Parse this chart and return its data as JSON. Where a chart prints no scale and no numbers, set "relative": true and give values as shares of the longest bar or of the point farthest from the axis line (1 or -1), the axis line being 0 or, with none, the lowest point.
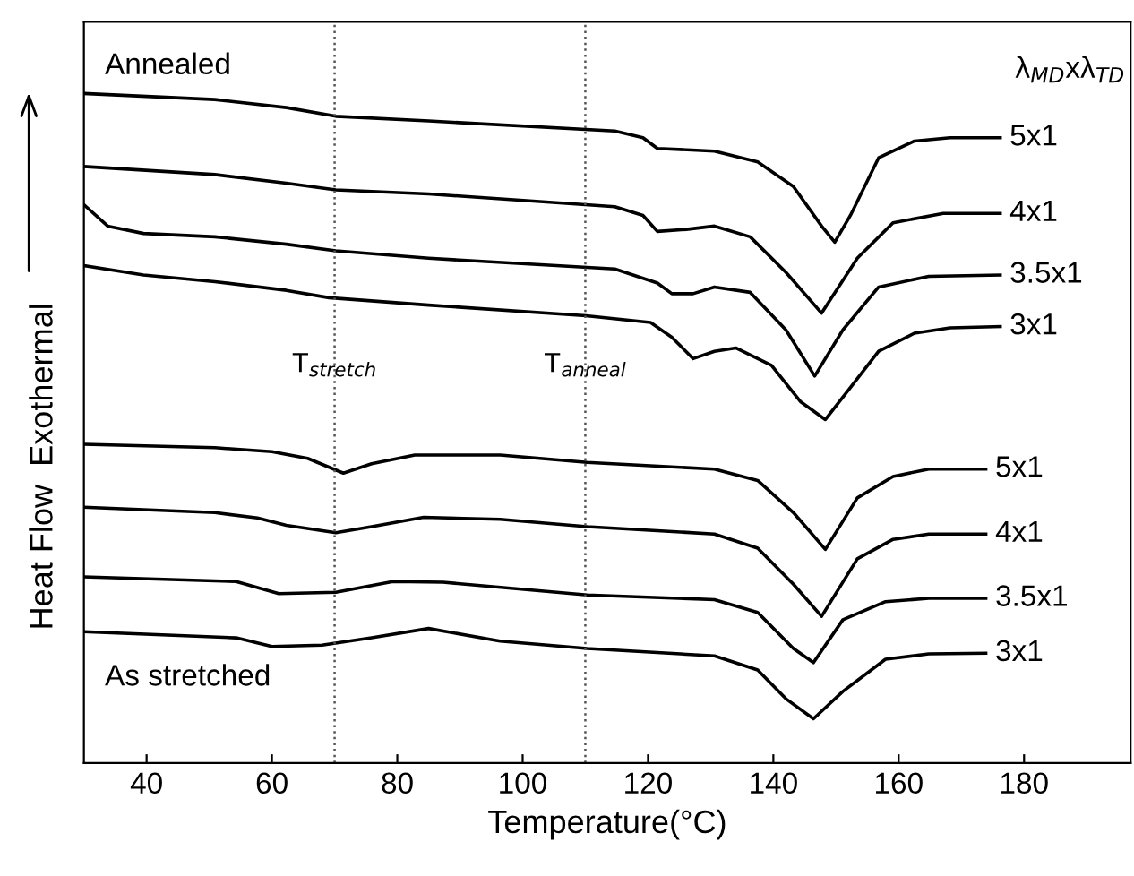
{
  "chart_data": {
    "type": "line",
    "relative": true,
    "xlabel": "Temperature(°C)",
    "ylabel": "Heat Flow  Exothermal",
    "xlim": [
      30,
      197
    ],
    "xticks": [
      40,
      60,
      80,
      100,
      120,
      140,
      160,
      180
    ],
    "tick_labels": "x",
    "grid": false,
    "legend": false,
    "marker": "none",
    "line_style": "solid",
    "annotations": [
      "Annealed",
      "As stretched",
      "λ$_{MD}$xλ$_{TD}$"
    ],
    "ref_lines": [
      {
        "axis": "x",
        "value": 70,
        "label": "T$_{stretch}$",
        "color": "#555555",
        "line_style": "dotted"
      },
      {
        "axis": "x",
        "value": 110,
        "label": "T$_{anneal}$",
        "color": "#555555",
        "line_style": "dotted"
      }
    ],
    "series": [
      {
        "name": "5x1",
        "color": "#000000",
        "x": [
          30,
          50.9,
          62.3,
          70.2,
          85.0,
          114.7,
          119.2,
          121.5,
          130.6,
          137.5,
          143.2,
          147.7,
          149.8,
          152.3,
          156.8,
          162.5,
          168.2,
          176.2
        ],
        "values": [
          1.0,
          0.991,
          0.979,
          0.966,
          0.959,
          0.944,
          0.934,
          0.918,
          0.914,
          0.898,
          0.861,
          0.802,
          0.778,
          0.818,
          0.904,
          0.929,
          0.934,
          0.934
        ]
      },
      {
        "name": "4x1",
        "color": "#000000",
        "x": [
          30,
          50.9,
          62.3,
          70.2,
          85.0,
          114.7,
          119.2,
          121.5,
          126.1,
          130.6,
          136.3,
          142.0,
          147.7,
          153.4,
          159.1,
          167.1,
          176.2
        ],
        "values": [
          0.891,
          0.879,
          0.866,
          0.856,
          0.85,
          0.831,
          0.818,
          0.794,
          0.797,
          0.802,
          0.786,
          0.733,
          0.672,
          0.754,
          0.807,
          0.821,
          0.821
        ]
      },
      {
        "name": "3.5x1",
        "color": "#000000",
        "x": [
          30,
          33.8,
          39.5,
          50.9,
          62.3,
          70.2,
          85.0,
          114.7,
          121.5,
          123.8,
          127.2,
          130.6,
          136.3,
          142.0,
          146.6,
          151.1,
          156.8,
          164.8,
          176.2
        ],
        "values": [
          0.834,
          0.802,
          0.791,
          0.786,
          0.775,
          0.765,
          0.754,
          0.738,
          0.717,
          0.701,
          0.701,
          0.711,
          0.703,
          0.647,
          0.578,
          0.647,
          0.711,
          0.727,
          0.729
        ]
      },
      {
        "name": "3x1",
        "color": "#000000",
        "x": [
          30,
          39.5,
          50.9,
          62.3,
          69.1,
          85.0,
          110.1,
          120.4,
          123.8,
          127.2,
          130.6,
          134.0,
          139.7,
          144.3,
          148.3,
          152.3,
          156.8,
          162.5,
          168.2,
          176.2
        ],
        "values": [
          0.743,
          0.729,
          0.719,
          0.706,
          0.695,
          0.684,
          0.668,
          0.658,
          0.636,
          0.604,
          0.615,
          0.62,
          0.594,
          0.54,
          0.513,
          0.561,
          0.615,
          0.642,
          0.65,
          0.652
        ]
      },
      {
        "name": "5x1",
        "color": "#000000",
        "x": [
          30,
          50.9,
          60.0,
          65.7,
          71.4,
          75.9,
          82.8,
          96.4,
          110.3,
          130.6,
          137.5,
          143.2,
          148.3,
          153.4,
          159.1,
          164.8,
          173.9
        ],
        "values": [
          0.476,
          0.471,
          0.465,
          0.455,
          0.433,
          0.447,
          0.46,
          0.46,
          0.449,
          0.439,
          0.422,
          0.374,
          0.319,
          0.396,
          0.428,
          0.439,
          0.439
        ]
      },
      {
        "name": "4x1",
        "color": "#000000",
        "x": [
          30,
          50.9,
          57.7,
          62.3,
          70.2,
          75.9,
          84.2,
          96.4,
          110.3,
          130.6,
          137.5,
          143.2,
          147.7,
          153.4,
          159.1,
          164.8,
          173.9
        ],
        "values": [
          0.382,
          0.374,
          0.366,
          0.355,
          0.344,
          0.353,
          0.367,
          0.364,
          0.353,
          0.342,
          0.321,
          0.267,
          0.219,
          0.305,
          0.334,
          0.342,
          0.342
        ]
      },
      {
        "name": "3.5x1",
        "color": "#000000",
        "x": [
          30,
          54.3,
          61.1,
          70.2,
          79.3,
          87.3,
          110.3,
          130.6,
          137.5,
          143.2,
          146.4,
          151.1,
          157.9,
          164.8,
          173.9
        ],
        "values": [
          0.278,
          0.271,
          0.253,
          0.255,
          0.271,
          0.27,
          0.251,
          0.244,
          0.225,
          0.171,
          0.15,
          0.214,
          0.241,
          0.246,
          0.246
        ]
      },
      {
        "name": "3x1",
        "color": "#000000",
        "x": [
          30,
          54.3,
          60.0,
          68.0,
          75.9,
          85.0,
          96.4,
          110.3,
          130.6,
          137.5,
          142.0,
          146.4,
          151.1,
          157.9,
          164.8,
          173.9
        ],
        "values": [
          0.196,
          0.187,
          0.174,
          0.176,
          0.187,
          0.201,
          0.182,
          0.171,
          0.16,
          0.139,
          0.096,
          0.066,
          0.107,
          0.155,
          0.163,
          0.164
        ]
      }
    ]
  }
}
